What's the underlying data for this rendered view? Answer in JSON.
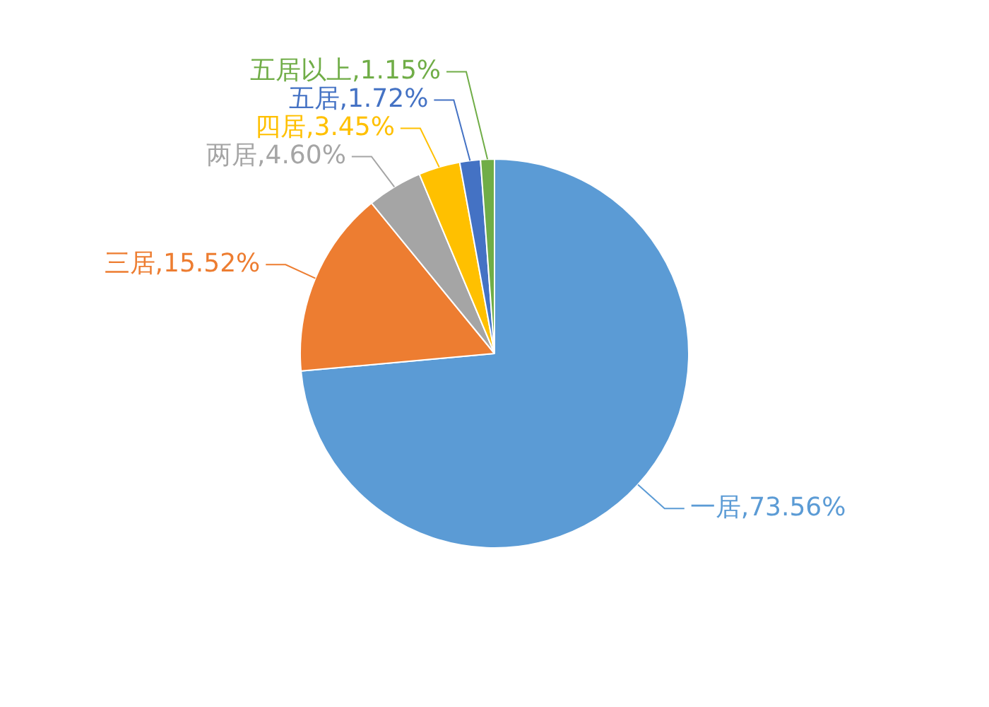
{
  "chart_data": {
    "type": "pie",
    "categories": [
      "一居",
      "三居",
      "两居",
      "四居",
      "五居",
      "五居以上"
    ],
    "values": [
      73.56,
      15.52,
      4.6,
      3.45,
      1.72,
      1.15
    ],
    "colors": [
      "#5b9bd5",
      "#ed7d31",
      "#a5a5a5",
      "#ffc000",
      "#4472c4",
      "#70ad47"
    ],
    "value_labels": [
      "73.56%",
      "15.52%",
      "4.60%",
      "3.45%",
      "1.72%",
      "1.15%"
    ],
    "legend": false
  }
}
